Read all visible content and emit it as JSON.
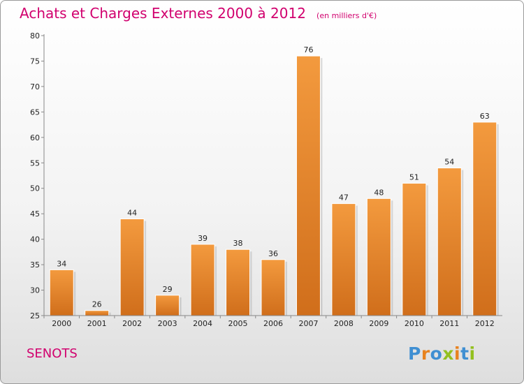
{
  "chart_data": {
    "type": "bar",
    "title": "Achats et Charges Externes 2000 à 2012",
    "subtitle": "(en milliers d'€)",
    "xlabel": "",
    "ylabel": "",
    "categories": [
      "2000",
      "2001",
      "2002",
      "2003",
      "2004",
      "2005",
      "2006",
      "2007",
      "2008",
      "2009",
      "2010",
      "2011",
      "2012"
    ],
    "values": [
      34,
      26,
      44,
      29,
      39,
      38,
      36,
      76,
      47,
      48,
      51,
      54,
      63
    ],
    "ylim": [
      25,
      80
    ],
    "yticks": [
      25,
      30,
      35,
      40,
      45,
      50,
      55,
      60,
      65,
      70,
      75,
      80
    ],
    "grid": false,
    "legend": "none",
    "bar_color": "#f39a3e",
    "bar_color_dark": "#d06e1b",
    "title_color": "#d1006e"
  },
  "location": "SENOTS",
  "brand": {
    "letters": [
      "P",
      "r",
      "o",
      "x",
      "i",
      "t",
      "i"
    ],
    "colors": [
      "#3f8fd2",
      "#e8821e",
      "#3f8fd2",
      "#93c01f",
      "#e8821e",
      "#3f8fd2",
      "#93c01f"
    ]
  }
}
